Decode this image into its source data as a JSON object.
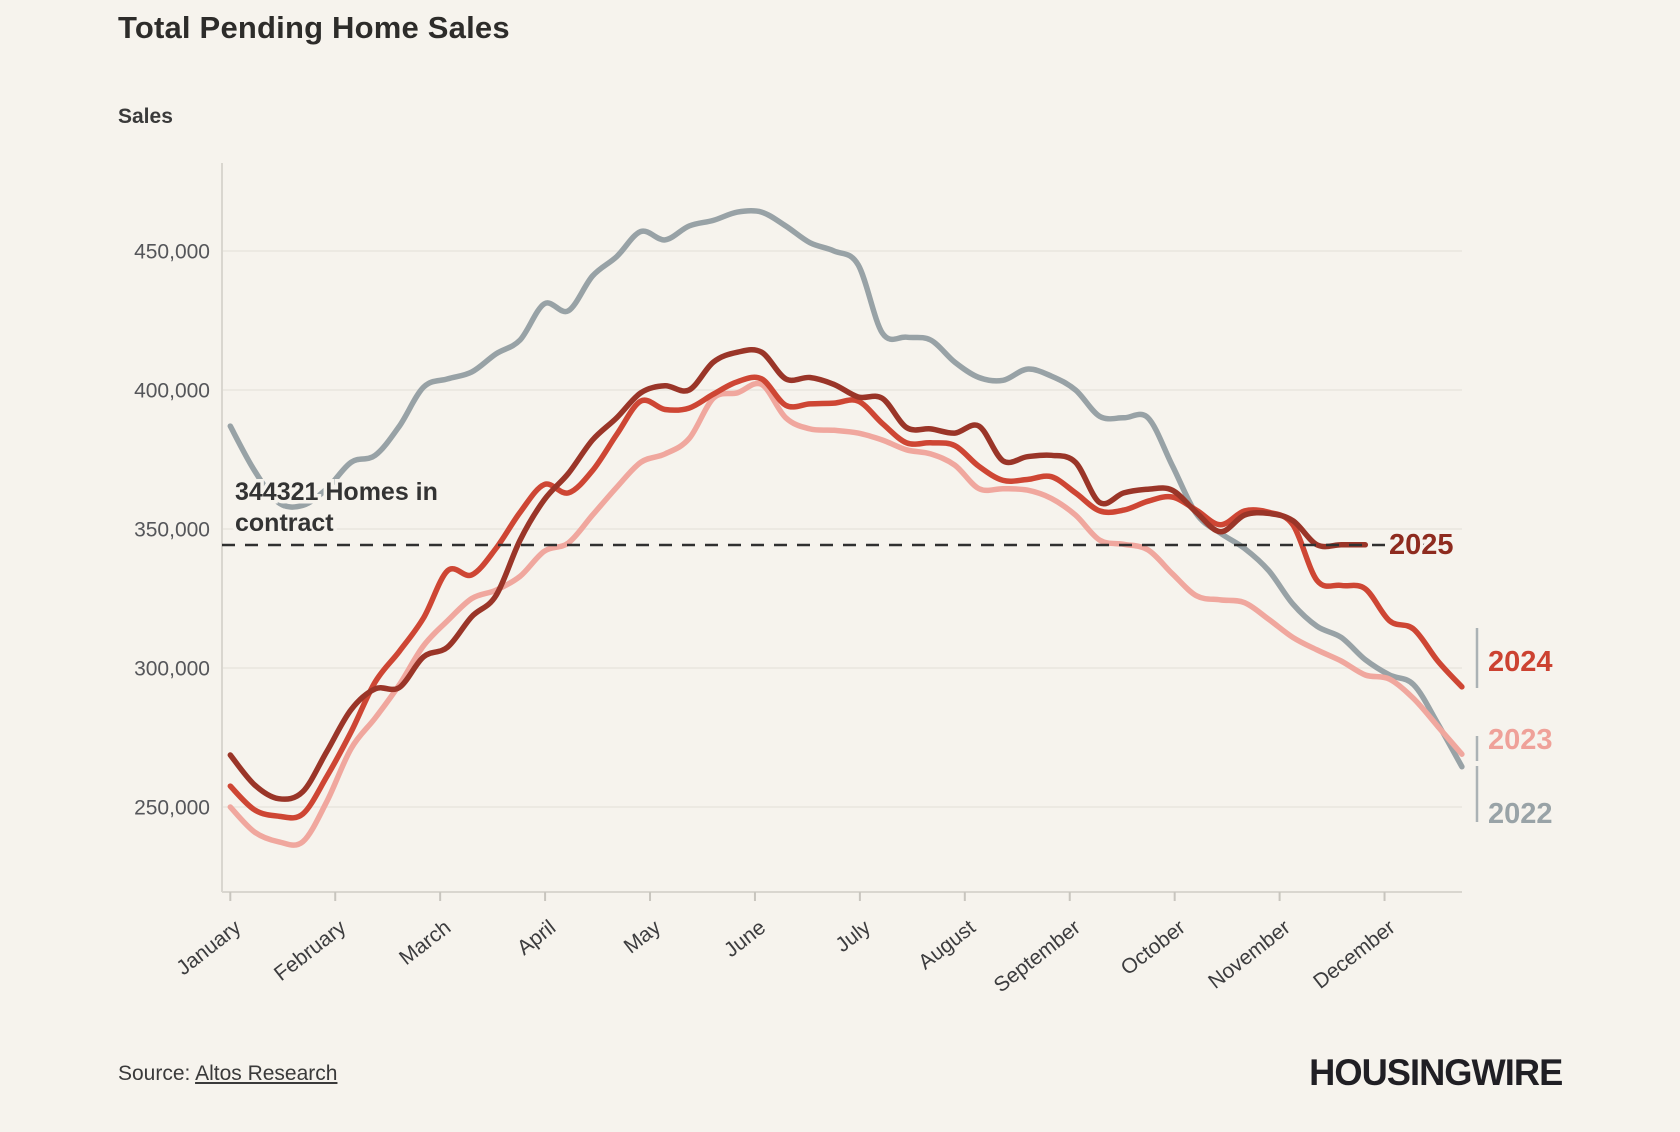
{
  "page": {
    "background": "#F6F3ED"
  },
  "header": {
    "title": "Total Pending Home Sales",
    "axis_title": "Sales"
  },
  "annotation": {
    "line1": "344321 Homes in",
    "line2": "contract",
    "value": 344321
  },
  "source": {
    "prefix": "Source: ",
    "link_label": "Altos Research"
  },
  "logo": "HOUSINGWIRE",
  "chart_data": {
    "type": "line",
    "title": "Total Pending Home Sales",
    "ylabel": "Sales",
    "x_unit": "week of year",
    "grid": "horizontal",
    "legend_position": "right-edge-labels",
    "x_axis": {
      "categories": [
        "January",
        "February",
        "March",
        "April",
        "May",
        "June",
        "July",
        "August",
        "September",
        "October",
        "November",
        "December"
      ]
    },
    "y_axis": {
      "ticks": [
        250000,
        300000,
        350000,
        400000,
        450000
      ],
      "tick_labels": [
        "250,000",
        "300,000",
        "350,000",
        "400,000",
        "450,000"
      ],
      "ylim": [
        215000,
        480000
      ]
    },
    "reference_line": {
      "value": 344321,
      "style": "dashed",
      "color": "#303030"
    },
    "series": [
      {
        "name": "2022",
        "color": "#98A2A6",
        "values": [
          387000,
          371000,
          359500,
          358500,
          364500,
          374000,
          376500,
          387000,
          401000,
          404000,
          406500,
          413000,
          418000,
          431000,
          428500,
          441000,
          448000,
          457000,
          454000,
          459000,
          461000,
          464000,
          464000,
          459000,
          453000,
          450000,
          445000,
          420500,
          419000,
          418000,
          410000,
          404500,
          403500,
          407500,
          405000,
          400000,
          390500,
          390000,
          390000,
          373000,
          355500,
          348500,
          343000,
          335000,
          323000,
          315000,
          311000,
          303000,
          297500,
          294000,
          280000,
          264500
        ]
      },
      {
        "name": "2023",
        "color": "#F0A79E",
        "values": [
          250000,
          241000,
          237500,
          237500,
          252000,
          271000,
          282000,
          294000,
          308000,
          317000,
          325000,
          328000,
          333000,
          342000,
          345000,
          355000,
          365000,
          374000,
          377000,
          382500,
          397000,
          399000,
          402000,
          390000,
          386000,
          385500,
          384500,
          382000,
          378500,
          377000,
          373000,
          364500,
          364500,
          364000,
          361000,
          355000,
          346000,
          344500,
          342500,
          334000,
          326000,
          324500,
          323500,
          317500,
          311000,
          306500,
          302500,
          297500,
          296000,
          289000,
          279000,
          269000
        ]
      },
      {
        "name": "2024",
        "color": "#CE4634",
        "values": [
          257500,
          249000,
          246700,
          247500,
          261000,
          277000,
          295000,
          306000,
          318000,
          335000,
          333500,
          343000,
          356000,
          366000,
          363000,
          371000,
          384000,
          396000,
          393000,
          393500,
          398500,
          403000,
          404000,
          394500,
          395000,
          395300,
          396000,
          388000,
          381000,
          381000,
          380000,
          372500,
          367500,
          367800,
          368800,
          363000,
          356500,
          356800,
          360000,
          361500,
          356800,
          351500,
          356500,
          356000,
          351500,
          331500,
          329700,
          328500,
          317000,
          314000,
          302500,
          293200
        ]
      },
      {
        "name": "2025",
        "color": "#9A3528",
        "values": [
          268700,
          258000,
          253000,
          255500,
          270000,
          285000,
          292500,
          293000,
          304000,
          307500,
          318500,
          326000,
          346000,
          360500,
          370000,
          382000,
          390000,
          399000,
          401500,
          400000,
          410000,
          413600,
          413600,
          404000,
          404500,
          402000,
          397500,
          397000,
          386500,
          386000,
          384500,
          387000,
          374500,
          376000,
          376500,
          374000,
          359500,
          363000,
          364300,
          364000,
          356000,
          349000,
          355000,
          355600,
          353000,
          344321,
          344321,
          344321
        ]
      }
    ]
  }
}
